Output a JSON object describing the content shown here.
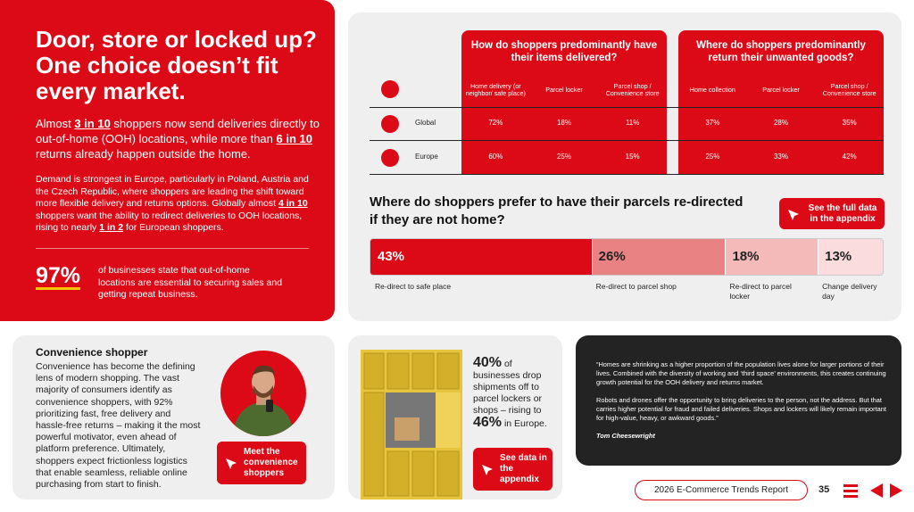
{
  "hero": {
    "title": "Door, store or locked up? One choice doesn’t fit every market.",
    "lead": [
      "Almost ",
      "3 in 10",
      " shoppers now send deliveries directly to out-of-home (OOH) locations, while more than ",
      "6 in 10",
      " returns already happen outside the home."
    ],
    "body": [
      "Demand is strongest in Europe, particularly in Poland, Austria and the Czech Republic, where shoppers are leading the shift toward more flexible delivery and returns options. Globally almost ",
      "4 in 10",
      " shoppers want the ability to redirect deliveries to OOH locations, rising to nearly ",
      "1 in 2",
      " for European shoppers."
    ],
    "stat": {
      "value": "97%",
      "text": "of businesses state that out-of-home locations are essential to securing sales and getting repeat business."
    }
  },
  "table": {
    "groups": [
      "How do shoppers predominantly have their items delivered?",
      "Where do shoppers predominantly return their unwanted goods?"
    ],
    "columns": [
      "Home delivery (or neighbor/ safe place)",
      "Parcel locker",
      "Parcel shop / Convenience store",
      "Home collection",
      "Parcel locker",
      "Parcel shop / Convenience store"
    ],
    "rows": [
      {
        "label": "Global",
        "cells": [
          "72%",
          "18%",
          "11%",
          "37%",
          "28%",
          "35%"
        ]
      },
      {
        "label": "Europe",
        "cells": [
          "60%",
          "25%",
          "15%",
          "25%",
          "33%",
          "42%"
        ]
      }
    ]
  },
  "chart_data": {
    "type": "stacked-bar",
    "title": "Where do shoppers prefer to have their parcels re-directed if they are not home?",
    "categories": [
      "Re-direct to safe place",
      "Re-direct to parcel shop",
      "Re-direct to parcel locker",
      "Change delivery day"
    ],
    "values": [
      43,
      26,
      18,
      13
    ],
    "value_labels": [
      "43%",
      "26%",
      "18%",
      "13%"
    ],
    "colors": [
      "#dc0a17",
      "#e98383",
      "#f4b9b9",
      "#fadcdc"
    ],
    "xlim": [
      0,
      100
    ]
  },
  "appendix_button": "See the full data in the appendix",
  "convenience": {
    "heading": "Convenience shopper",
    "text": "Convenience has become the defining lens of modern shopping. The vast majority of consumers identify as convenience shoppers, with 92% prioritizing fast, free delivery and hassle-free returns – making it the most powerful motivator, even ahead of platform preference. Ultimately, shoppers expect frictionless logistics that enable seamless, reliable online purchasing from start to finish.",
    "button": "Meet the convenience shoppers"
  },
  "lockers": {
    "parts": [
      "40%",
      " of businesses drop shipments off to parcel lockers or shops – rising to ",
      "46%",
      " in Europe."
    ],
    "button": "See data in the appendix"
  },
  "quote": {
    "paragraphs": [
      "“Homes are shrinking as a higher proportion of the population lives alone for larger portions of their lives. Combined with the diversity of working and ‘third space’ environments, this creates continuing growth potential for the OOH delivery and returns market.",
      "Robots and drones offer the opportunity to bring deliveries to the person, not the address. But that carries higher potential for fraud and failed deliveries. Shops and lockers will likely remain important for high-value, heavy, or awkward goods.”"
    ],
    "author": "Tom Cheesewright"
  },
  "footer": {
    "report": "2026 E-Commerce Trends Report",
    "page": "35"
  }
}
